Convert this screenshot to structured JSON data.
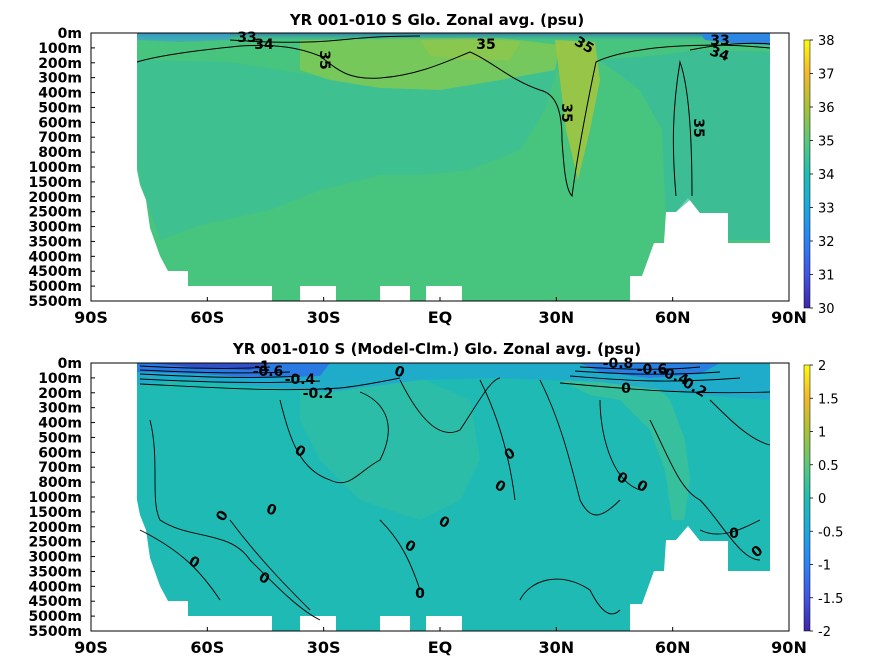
{
  "chart_data": [
    {
      "type": "heatmap",
      "title": "YR 001-010 S Glo. Zonal avg. (psu)",
      "x_ticks": [
        "90S",
        "60S",
        "30S",
        "EQ",
        "30N",
        "60N",
        "90N"
      ],
      "x_values": [
        -90,
        -60,
        -30,
        0,
        30,
        60,
        90
      ],
      "y_ticks": [
        "0m",
        "100m",
        "200m",
        "300m",
        "400m",
        "500m",
        "600m",
        "700m",
        "800m",
        "1000m",
        "1500m",
        "2000m",
        "2500m",
        "3000m",
        "3500m",
        "4000m",
        "4500m",
        "5000m",
        "5500m"
      ],
      "colorbar": {
        "ticks": [
          "30",
          "31",
          "32",
          "33",
          "34",
          "35",
          "36",
          "37",
          "38"
        ],
        "range": [
          30,
          38
        ]
      },
      "contour_labels": [
        "33",
        "34",
        "35",
        "35",
        "35",
        "35",
        "35",
        "33",
        "34"
      ],
      "colors": {
        "low": "#3e26a8",
        "mid": "#26bcb5",
        "high": "#f9fb15",
        "land": "#ffffff"
      }
    },
    {
      "type": "heatmap",
      "title": "YR 001-010 S (Model-Clm.) Glo. Zonal avg. (psu)",
      "x_ticks": [
        "90S",
        "60S",
        "30S",
        "EQ",
        "30N",
        "60N",
        "90N"
      ],
      "x_values": [
        -90,
        -60,
        -30,
        0,
        30,
        60,
        90
      ],
      "y_ticks": [
        "0m",
        "100m",
        "200m",
        "300m",
        "400m",
        "500m",
        "600m",
        "700m",
        "800m",
        "1000m",
        "1500m",
        "2000m",
        "2500m",
        "3000m",
        "3500m",
        "4000m",
        "4500m",
        "5000m",
        "5500m"
      ],
      "colorbar": {
        "ticks": [
          "-2",
          "-1.5",
          "-1",
          "-0.5",
          "0",
          "0.5",
          "1",
          "1.5",
          "2"
        ],
        "range": [
          -2,
          2
        ]
      },
      "contour_labels": [
        "-1",
        "-0.6",
        "-0.4",
        "-0.2",
        "0",
        "-0.8",
        "-0.6",
        "-0.4",
        "-0.2",
        "0",
        "0",
        "0",
        "0",
        "0",
        "0",
        "0",
        "0",
        "0",
        "0",
        "0",
        "0",
        "0",
        "0",
        "0"
      ],
      "colors": {
        "low": "#3e26a8",
        "mid": "#26bcb5",
        "high": "#f9fb15",
        "land": "#ffffff"
      }
    }
  ]
}
